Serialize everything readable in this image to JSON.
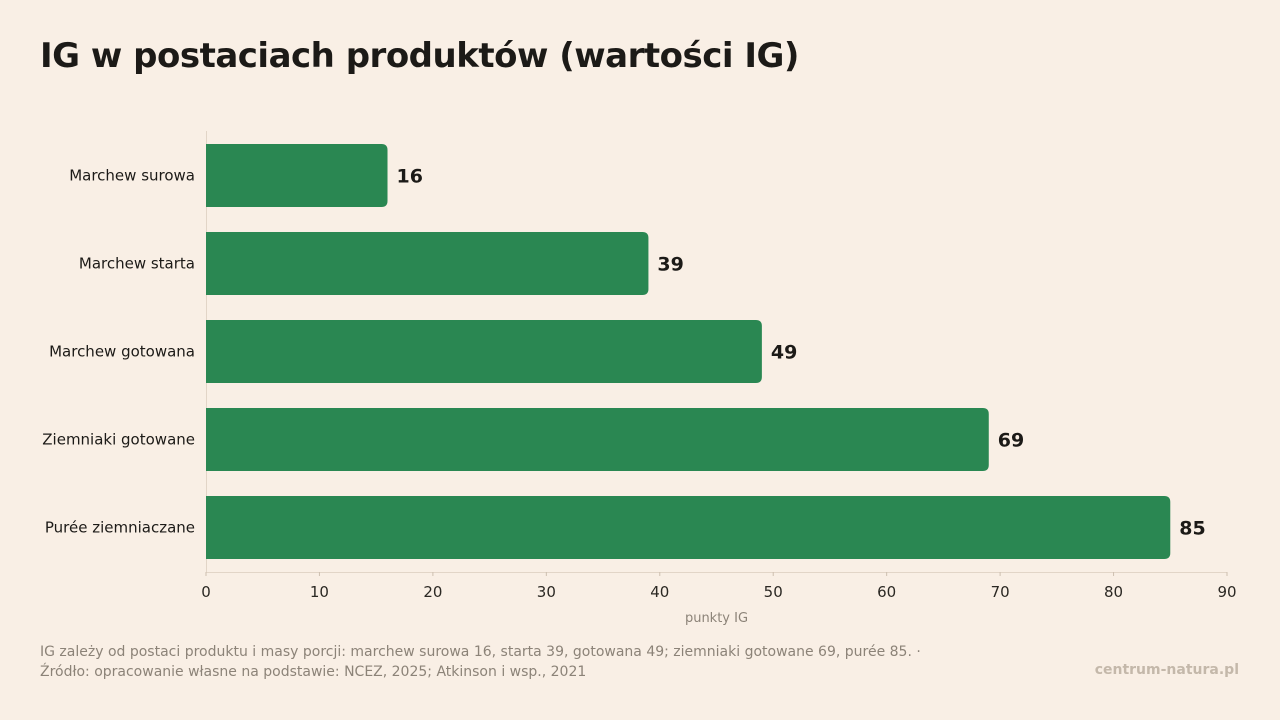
{
  "title": "IG w postaciach produktów (wartości IG)",
  "chart_data": {
    "type": "bar",
    "orientation": "horizontal",
    "categories": [
      "Marchew surowa",
      "Marchew starta",
      "Marchew gotowana",
      "Ziemniaki gotowane",
      "Purée ziemniaczane"
    ],
    "values": [
      16,
      39,
      49,
      69,
      85
    ],
    "xlabel": "punkty IG",
    "xlim": [
      0,
      90
    ],
    "xticks": [
      0,
      10,
      20,
      30,
      40,
      50,
      60,
      70,
      80,
      90
    ],
    "bar_color": "#2a8752",
    "data_labels": true,
    "grid": false
  },
  "footnote": "IG zależy od postaci produktu i masy porcji: marchew surowa 16, starta 39, gotowana 49; ziemniaki gotowane 69, purée 85. · Źródło: opracowanie własne na podstawie: NCEZ, 2025; Atkinson i wsp., 2021",
  "brand": "centrum-natura.pl",
  "colors": {
    "background": "#f9efe5",
    "bar": "#2a8752",
    "text": "#1c1a17",
    "muted": "#8c8378"
  }
}
